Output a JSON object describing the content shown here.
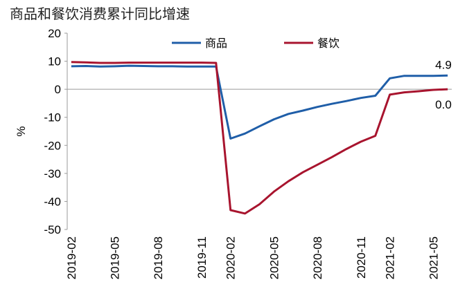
{
  "title": "商品和餐饮消费累计同比增速",
  "chart_data": {
    "type": "line",
    "title": "商品和餐饮消费累计同比增速",
    "ylabel": "%",
    "xlabel": "",
    "ylim": [
      -50,
      20
    ],
    "yticks": [
      20,
      10,
      0,
      -10,
      -20,
      -30,
      -40,
      -50
    ],
    "grid": false,
    "legend_position": "top",
    "x": [
      "2019-02",
      "2019-03",
      "2019-04",
      "2019-05",
      "2019-06",
      "2019-07",
      "2019-08",
      "2019-09",
      "2019-10",
      "2019-11",
      "2019-12",
      "2020-02",
      "2020-03",
      "2020-04",
      "2020-05",
      "2020-06",
      "2020-07",
      "2020-08",
      "2020-09",
      "2020-10",
      "2020-11",
      "2020-12",
      "2021-02",
      "2021-03",
      "2021-04",
      "2021-05",
      "2021-06"
    ],
    "xtick_labels": [
      "2019-02",
      "2019-05",
      "2019-08",
      "2019-11",
      "2020-02",
      "2020-05",
      "2020-08",
      "2020-11",
      "2021-02",
      "2021-05"
    ],
    "series": [
      {
        "name": "商品",
        "color": "#1f5ea8",
        "values": [
          8.2,
          8.3,
          8.1,
          8.2,
          8.4,
          8.3,
          8.2,
          8.2,
          8.1,
          8.1,
          8.1,
          -17.6,
          -15.8,
          -13.2,
          -10.7,
          -8.8,
          -7.6,
          -6.3,
          -5.2,
          -4.2,
          -3.1,
          -2.3,
          3.9,
          4.8,
          4.8,
          4.8,
          4.9
        ],
        "end_label": "4.9"
      },
      {
        "name": "餐饮",
        "color": "#a8142e",
        "values": [
          9.7,
          9.6,
          9.4,
          9.4,
          9.5,
          9.5,
          9.5,
          9.5,
          9.5,
          9.5,
          9.4,
          -43.1,
          -44.3,
          -41.0,
          -36.5,
          -32.8,
          -29.6,
          -26.9,
          -24.2,
          -21.3,
          -18.7,
          -16.6,
          -1.9,
          -1.1,
          -0.7,
          -0.2,
          0.0
        ],
        "end_label": "0.0"
      }
    ]
  }
}
